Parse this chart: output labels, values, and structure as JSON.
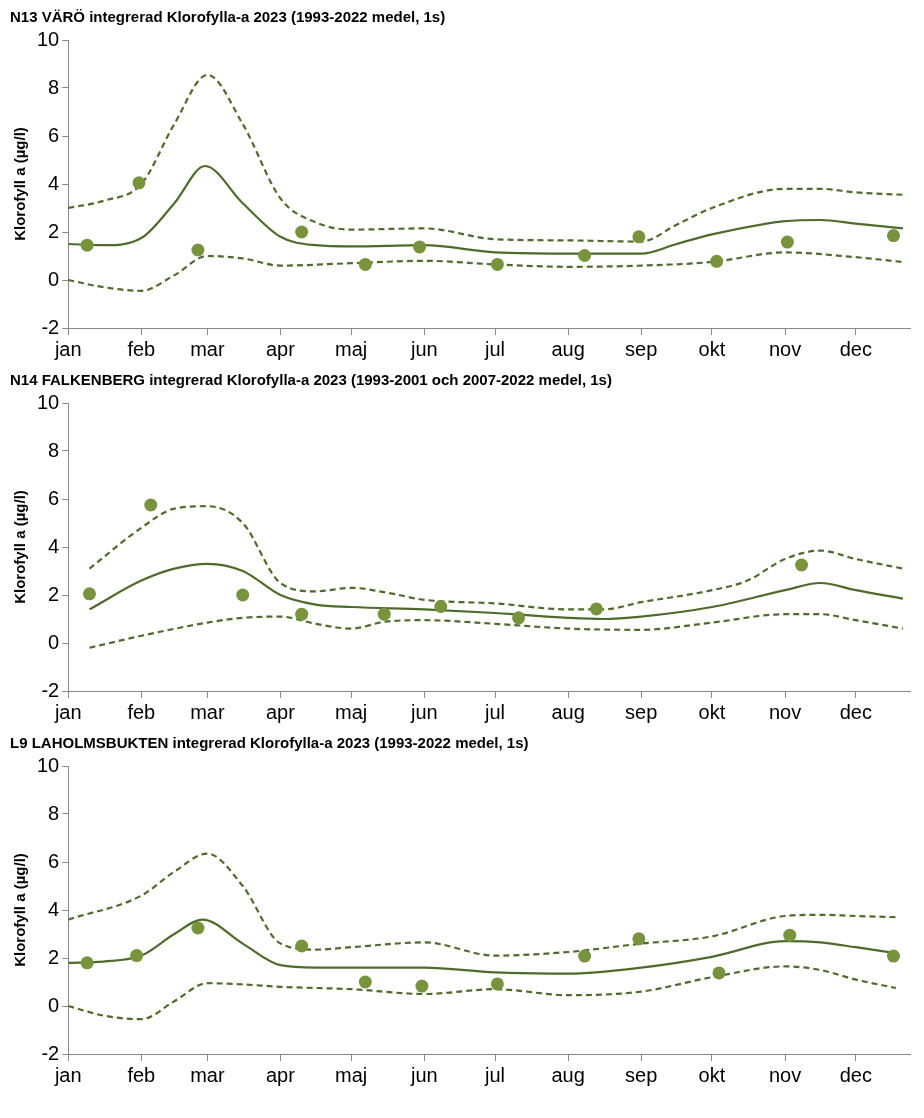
{
  "chart_data": [
    {
      "type": "line",
      "title": "N13 VÄRÖ integrerad Klorofylla-a 2023 (1993-2022 medel, 1s)",
      "ylabel": "Klorofyll a (µg/l)",
      "xlim": [
        "--01-01",
        "--12-24"
      ],
      "xticks": [
        {
          "value": "--01-01",
          "label": "jan"
        },
        {
          "value": "--02-01",
          "label": "feb"
        },
        {
          "value": "--03-01",
          "label": "mar"
        },
        {
          "value": "--04-01",
          "label": "apr"
        },
        {
          "value": "--05-01",
          "label": "maj"
        },
        {
          "value": "--06-01",
          "label": "jun"
        },
        {
          "value": "--07-01",
          "label": "jul"
        },
        {
          "value": "--08-01",
          "label": "aug"
        },
        {
          "value": "--09-01",
          "label": "sep"
        },
        {
          "value": "--10-01",
          "label": "okt"
        },
        {
          "value": "--11-01",
          "label": "nov"
        },
        {
          "value": "--12-01",
          "label": "dec"
        }
      ],
      "ylim": [
        -2,
        10
      ],
      "yticks": [
        -2,
        0,
        2,
        4,
        6,
        8,
        10
      ],
      "grid": false,
      "legend": false,
      "series": [
        {
          "color": "#4f6b2b",
          "line_style": "solid",
          "marker": "none",
          "x": [
            "--01-01",
            "--01-16",
            "--02-01",
            "--02-15",
            "--02-28",
            "--03-16",
            "--04-01",
            "--04-16",
            "--05-01",
            "--06-01",
            "--07-01",
            "--08-01",
            "--09-01",
            "--09-16",
            "--10-01",
            "--11-01",
            "--11-16",
            "--12-01",
            "--12-21"
          ],
          "values": [
            1.5,
            1.45,
            1.75,
            3.2,
            4.75,
            3.2,
            1.8,
            1.45,
            1.4,
            1.45,
            1.15,
            1.1,
            1.1,
            1.5,
            1.9,
            2.45,
            2.5,
            2.35,
            2.15
          ]
        },
        {
          "color": "#4f6b2b",
          "line_style": "dashed",
          "marker": "none",
          "x": [
            "--01-01",
            "--01-16",
            "--02-01",
            "--02-15",
            "--03-01",
            "--03-16",
            "--04-01",
            "--04-16",
            "--05-01",
            "--06-01",
            "--07-01",
            "--08-01",
            "--09-01",
            "--09-16",
            "--10-01",
            "--11-01",
            "--11-16",
            "--12-01",
            "--12-21"
          ],
          "values": [
            3.0,
            3.3,
            4.0,
            6.5,
            8.55,
            6.5,
            3.4,
            2.4,
            2.1,
            2.15,
            1.7,
            1.65,
            1.6,
            2.3,
            3.0,
            3.8,
            3.8,
            3.65,
            3.55
          ]
        },
        {
          "color": "#4f6b2b",
          "line_style": "dashed",
          "marker": "none",
          "x": [
            "--01-01",
            "--01-16",
            "--02-01",
            "--02-15",
            "--03-01",
            "--03-16",
            "--04-01",
            "--05-01",
            "--06-01",
            "--07-01",
            "--08-01",
            "--09-01",
            "--10-01",
            "--11-01",
            "--12-01",
            "--12-21"
          ],
          "values": [
            0,
            -0.3,
            -0.45,
            0.2,
            1.0,
            0.9,
            0.6,
            0.7,
            0.8,
            0.65,
            0.55,
            0.6,
            0.75,
            1.15,
            0.95,
            0.75
          ]
        },
        {
          "type": "scatter",
          "color": "#77933c",
          "marker": "circle",
          "x": [
            "--01-09",
            "--01-31",
            "--02-25",
            "--04-10",
            "--05-07",
            "--05-30",
            "--07-02",
            "--08-08",
            "--08-31",
            "--10-03",
            "--11-02",
            "--12-17"
          ],
          "values": [
            1.45,
            4.05,
            1.25,
            2.0,
            0.65,
            1.38,
            0.65,
            1.02,
            1.8,
            0.78,
            1.58,
            1.85
          ]
        }
      ]
    },
    {
      "type": "line",
      "title": "N14 FALKENBERG integrerad Klorofylla-a 2023 (1993-2001 och 2007-2022 medel, 1s)",
      "ylabel": "Klorofyll a (µg/l)",
      "xlim": [
        "--01-01",
        "--12-24"
      ],
      "xticks": [
        {
          "value": "--01-01",
          "label": "jan"
        },
        {
          "value": "--02-01",
          "label": "feb"
        },
        {
          "value": "--03-01",
          "label": "mar"
        },
        {
          "value": "--04-01",
          "label": "apr"
        },
        {
          "value": "--05-01",
          "label": "maj"
        },
        {
          "value": "--06-01",
          "label": "jun"
        },
        {
          "value": "--07-01",
          "label": "jul"
        },
        {
          "value": "--08-01",
          "label": "aug"
        },
        {
          "value": "--09-01",
          "label": "sep"
        },
        {
          "value": "--10-01",
          "label": "okt"
        },
        {
          "value": "--11-01",
          "label": "nov"
        },
        {
          "value": "--12-01",
          "label": "dec"
        }
      ],
      "ylim": [
        -2,
        10
      ],
      "yticks": [
        -2,
        0,
        2,
        4,
        6,
        8,
        10
      ],
      "grid": false,
      "legend": false,
      "series": [
        {
          "color": "#4f6b2b",
          "line_style": "solid",
          "marker": "none",
          "x": [
            "--01-10",
            "--02-01",
            "--02-15",
            "--03-01",
            "--03-16",
            "--04-01",
            "--04-16",
            "--05-01",
            "--06-01",
            "--07-01",
            "--08-01",
            "--08-16",
            "--09-01",
            "--10-01",
            "--11-01",
            "--11-16",
            "--12-01",
            "--12-21"
          ],
          "values": [
            1.4,
            2.6,
            3.1,
            3.3,
            3.0,
            2.0,
            1.6,
            1.5,
            1.4,
            1.25,
            1.05,
            1.0,
            1.1,
            1.5,
            2.2,
            2.5,
            2.2,
            1.85
          ]
        },
        {
          "color": "#4f6b2b",
          "line_style": "dashed",
          "marker": "none",
          "x": [
            "--01-10",
            "--02-01",
            "--02-15",
            "--03-01",
            "--03-16",
            "--04-01",
            "--04-16",
            "--05-01",
            "--05-16",
            "--06-01",
            "--07-01",
            "--08-01",
            "--08-16",
            "--09-01",
            "--10-01",
            "--10-16",
            "--11-01",
            "--11-16",
            "--12-01",
            "--12-21"
          ],
          "values": [
            3.1,
            4.8,
            5.6,
            5.7,
            5.0,
            2.5,
            2.15,
            2.3,
            2.1,
            1.8,
            1.65,
            1.4,
            1.4,
            1.7,
            2.2,
            2.6,
            3.5,
            3.85,
            3.5,
            3.1
          ]
        },
        {
          "color": "#4f6b2b",
          "line_style": "dashed",
          "marker": "none",
          "x": [
            "--01-10",
            "--02-01",
            "--03-01",
            "--03-16",
            "--04-01",
            "--04-16",
            "--05-01",
            "--05-16",
            "--06-01",
            "--07-01",
            "--08-01",
            "--09-01",
            "--10-01",
            "--11-01",
            "--11-16",
            "--12-01",
            "--12-21"
          ],
          "values": [
            -0.2,
            0.3,
            0.85,
            1.05,
            1.1,
            0.8,
            0.6,
            0.9,
            0.95,
            0.8,
            0.6,
            0.55,
            0.85,
            1.2,
            1.2,
            0.95,
            0.6
          ]
        },
        {
          "type": "scatter",
          "color": "#77933c",
          "marker": "circle",
          "x": [
            "--01-10",
            "--02-05",
            "--03-16",
            "--04-10",
            "--05-15",
            "--06-08",
            "--07-11",
            "--08-13",
            "--11-08"
          ],
          "values": [
            2.05,
            5.75,
            2.0,
            1.2,
            1.2,
            1.52,
            1.05,
            1.42,
            3.25
          ]
        }
      ]
    },
    {
      "type": "line",
      "title": "L9 LAHOLMSBUKTEN integrerad Klorofylla-a 2023 (1993-2022 medel, 1s)",
      "ylabel": "Klorofyll a (µg/l)",
      "xlim": [
        "--01-01",
        "--12-24"
      ],
      "xticks": [
        {
          "value": "--01-01",
          "label": "jan"
        },
        {
          "value": "--02-01",
          "label": "feb"
        },
        {
          "value": "--03-01",
          "label": "mar"
        },
        {
          "value": "--04-01",
          "label": "apr"
        },
        {
          "value": "--05-01",
          "label": "maj"
        },
        {
          "value": "--06-01",
          "label": "jun"
        },
        {
          "value": "--07-01",
          "label": "jul"
        },
        {
          "value": "--08-01",
          "label": "aug"
        },
        {
          "value": "--09-01",
          "label": "sep"
        },
        {
          "value": "--10-01",
          "label": "okt"
        },
        {
          "value": "--11-01",
          "label": "nov"
        },
        {
          "value": "--12-01",
          "label": "dec"
        }
      ],
      "ylim": [
        -2,
        10
      ],
      "yticks": [
        -2,
        0,
        2,
        4,
        6,
        8,
        10
      ],
      "grid": false,
      "legend": false,
      "series": [
        {
          "color": "#4f6b2b",
          "line_style": "solid",
          "marker": "none",
          "x": [
            "--01-01",
            "--01-16",
            "--02-01",
            "--02-15",
            "--02-27",
            "--03-16",
            "--04-01",
            "--04-16",
            "--05-01",
            "--06-01",
            "--07-01",
            "--08-01",
            "--09-01",
            "--10-01",
            "--11-01",
            "--11-16",
            "--12-01",
            "--12-18"
          ],
          "values": [
            1.8,
            1.85,
            2.1,
            3.0,
            3.6,
            2.6,
            1.7,
            1.6,
            1.6,
            1.6,
            1.4,
            1.35,
            1.6,
            2.05,
            2.7,
            2.65,
            2.45,
            2.2
          ]
        },
        {
          "color": "#4f6b2b",
          "line_style": "dashed",
          "marker": "none",
          "x": [
            "--01-01",
            "--02-01",
            "--02-15",
            "--03-01",
            "--03-16",
            "--04-01",
            "--04-16",
            "--05-01",
            "--06-01",
            "--07-01",
            "--08-01",
            "--09-01",
            "--10-01",
            "--11-01",
            "--11-16",
            "--12-01",
            "--12-18"
          ],
          "values": [
            3.6,
            4.6,
            5.6,
            6.35,
            5.0,
            2.6,
            2.35,
            2.45,
            2.65,
            2.1,
            2.25,
            2.6,
            2.9,
            3.75,
            3.8,
            3.75,
            3.7
          ]
        },
        {
          "color": "#4f6b2b",
          "line_style": "dashed",
          "marker": "none",
          "x": [
            "--01-01",
            "--01-16",
            "--02-01",
            "--02-15",
            "--03-01",
            "--03-16",
            "--04-01",
            "--05-01",
            "--06-01",
            "--07-01",
            "--08-01",
            "--09-01",
            "--10-01",
            "--11-01",
            "--11-16",
            "--12-01",
            "--12-18"
          ],
          "values": [
            0,
            -0.4,
            -0.55,
            0.2,
            0.95,
            0.9,
            0.8,
            0.7,
            0.5,
            0.7,
            0.45,
            0.6,
            1.2,
            1.65,
            1.5,
            1.1,
            0.75
          ]
        },
        {
          "type": "scatter",
          "color": "#77933c",
          "marker": "circle",
          "x": [
            "--01-09",
            "--01-30",
            "--02-25",
            "--04-10",
            "--05-07",
            "--05-31",
            "--07-02",
            "--08-08",
            "--08-31",
            "--10-04",
            "--11-03",
            "--12-17"
          ],
          "values": [
            1.8,
            2.1,
            3.25,
            2.5,
            1.0,
            0.83,
            0.92,
            2.08,
            2.8,
            1.38,
            2.95,
            2.08
          ]
        }
      ]
    }
  ]
}
